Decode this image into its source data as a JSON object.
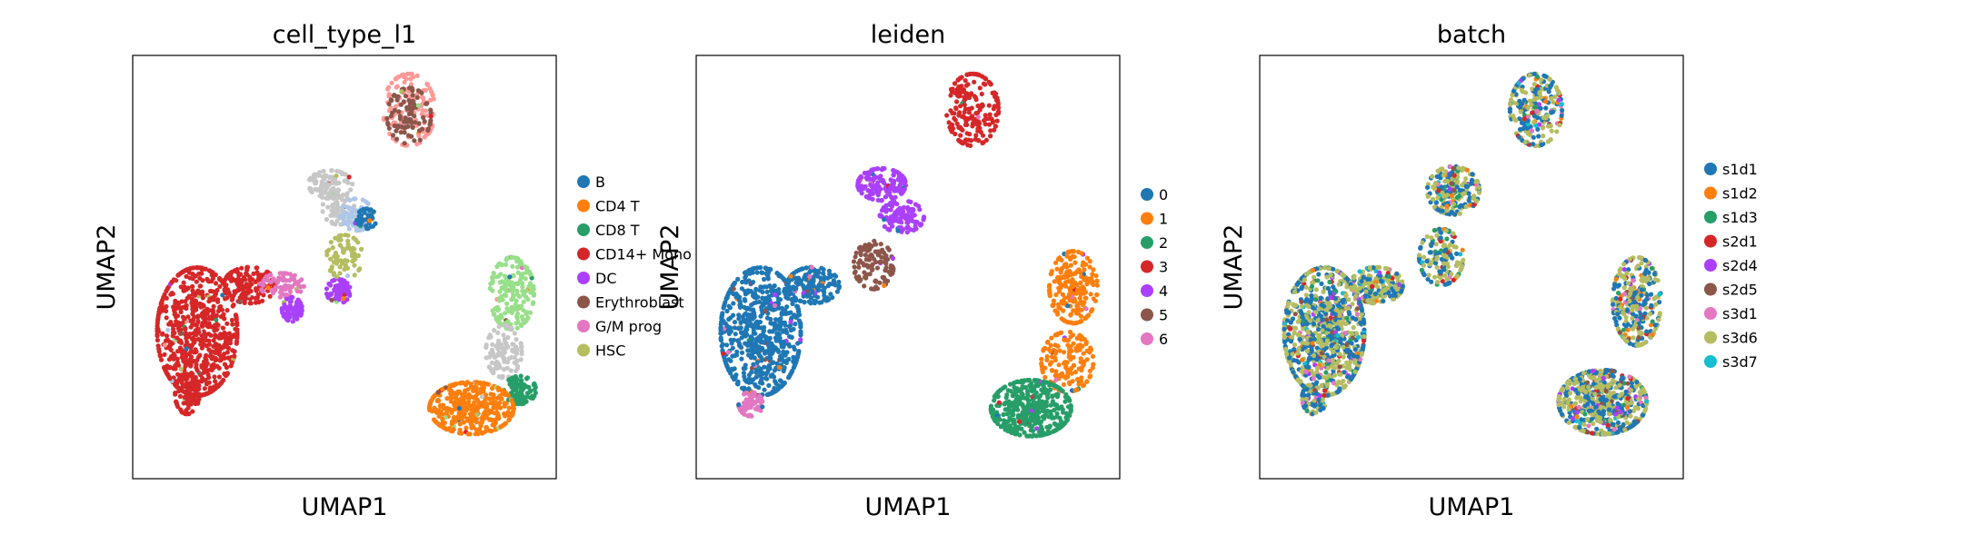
{
  "figure": {
    "background": "#ffffff"
  },
  "chart_data": [
    {
      "type": "scatter",
      "title": "cell_type_l1",
      "xlabel": "UMAP1",
      "ylabel": "UMAP2",
      "xlim": [
        -7,
        14
      ],
      "ylim": [
        -7,
        14
      ],
      "grid": false,
      "ticks": "none",
      "legend": {
        "placement": "right, outside",
        "entries": [
          {
            "name": "B",
            "color": "#1f77b4"
          },
          {
            "name": "CD4 T",
            "color": "#ff7f0e"
          },
          {
            "name": "CD8 T",
            "color": "#279e68"
          },
          {
            "name": "CD14+ Mono",
            "color": "#d62728"
          },
          {
            "name": "DC",
            "color": "#aa40fc"
          },
          {
            "name": "Erythroblast",
            "color": "#8c564b"
          },
          {
            "name": "G/M prog",
            "color": "#e377c2"
          },
          {
            "name": "HSC",
            "color": "#b5bd61"
          }
        ]
      },
      "extra_colors": [
        "#ff9896",
        "#c7c7c7",
        "#aec7e8",
        "#98df8a"
      ],
      "clusters": [
        {
          "cx": -3.8,
          "cy": 0.3,
          "rx": 2.0,
          "ry": 3.2,
          "color": "#d62728",
          "n": 700
        },
        {
          "cx": -4.3,
          "cy": -2.8,
          "rx": 0.6,
          "ry": 1.0,
          "color": "#d62728",
          "n": 90
        },
        {
          "cx": -1.2,
          "cy": 2.6,
          "rx": 1.3,
          "ry": 0.9,
          "color": "#d62728",
          "n": 160
        },
        {
          "cx": 0.4,
          "cy": 2.6,
          "rx": 1.1,
          "ry": 0.6,
          "color": "#e377c2",
          "n": 70
        },
        {
          "cx": 0.9,
          "cy": 1.4,
          "rx": 0.5,
          "ry": 0.6,
          "color": "#aa40fc",
          "n": 70
        },
        {
          "cx": 3.2,
          "cy": 2.3,
          "rx": 0.6,
          "ry": 0.6,
          "color": "#aa40fc",
          "n": 80
        },
        {
          "cx": 3.5,
          "cy": 4.0,
          "rx": 0.9,
          "ry": 1.1,
          "color": "#b5bd61",
          "n": 70
        },
        {
          "cx": 2.8,
          "cy": 7.6,
          "rx": 1.1,
          "ry": 0.7,
          "color": "#c7c7c7",
          "n": 110
        },
        {
          "cx": 3.2,
          "cy": 6.4,
          "rx": 0.8,
          "ry": 0.8,
          "color": "#c7c7c7",
          "n": 60
        },
        {
          "cx": 4.1,
          "cy": 6.1,
          "rx": 0.8,
          "ry": 0.8,
          "color": "#aec7e8",
          "n": 70
        },
        {
          "cx": 4.6,
          "cy": 5.9,
          "rx": 0.5,
          "ry": 0.5,
          "color": "#1f77b4",
          "n": 40
        },
        {
          "cx": 6.7,
          "cy": 11.3,
          "rx": 1.3,
          "ry": 1.8,
          "color": "#ff9896",
          "n": 140
        },
        {
          "cx": 6.7,
          "cy": 11.0,
          "rx": 1.1,
          "ry": 1.4,
          "color": "#8c564b",
          "n": 100
        },
        {
          "cx": 11.8,
          "cy": 2.2,
          "rx": 1.1,
          "ry": 1.8,
          "color": "#98df8a",
          "n": 180
        },
        {
          "cx": 11.4,
          "cy": -0.7,
          "rx": 0.9,
          "ry": 1.3,
          "color": "#c7c7c7",
          "n": 110
        },
        {
          "cx": 12.2,
          "cy": -2.6,
          "rx": 0.8,
          "ry": 0.7,
          "color": "#279e68",
          "n": 90
        },
        {
          "cx": 9.8,
          "cy": -3.5,
          "rx": 2.1,
          "ry": 1.3,
          "color": "#ff7f0e",
          "n": 420
        }
      ]
    },
    {
      "type": "scatter",
      "title": "leiden",
      "xlabel": "UMAP1",
      "ylabel": "UMAP2",
      "xlim": [
        -7,
        14
      ],
      "ylim": [
        -7,
        14
      ],
      "grid": false,
      "ticks": "none",
      "legend": {
        "placement": "right, outside",
        "entries": [
          {
            "name": "0",
            "color": "#1f77b4"
          },
          {
            "name": "1",
            "color": "#ff7f0e"
          },
          {
            "name": "2",
            "color": "#279e68"
          },
          {
            "name": "3",
            "color": "#d62728"
          },
          {
            "name": "4",
            "color": "#aa40fc"
          },
          {
            "name": "5",
            "color": "#8c564b"
          },
          {
            "name": "6",
            "color": "#e377c2"
          }
        ]
      },
      "clusters": [
        {
          "cx": -3.8,
          "cy": 0.3,
          "rx": 2.0,
          "ry": 3.2,
          "color": "#1f77b4",
          "n": 700
        },
        {
          "cx": -1.2,
          "cy": 2.6,
          "rx": 1.3,
          "ry": 0.9,
          "color": "#1f77b4",
          "n": 160
        },
        {
          "cx": -4.3,
          "cy": -3.3,
          "rx": 0.6,
          "ry": 0.6,
          "color": "#e377c2",
          "n": 80
        },
        {
          "cx": 1.8,
          "cy": 3.6,
          "rx": 1.0,
          "ry": 1.2,
          "color": "#8c564b",
          "n": 110
        },
        {
          "cx": 2.2,
          "cy": 7.6,
          "rx": 1.2,
          "ry": 0.8,
          "color": "#aa40fc",
          "n": 140
        },
        {
          "cx": 3.2,
          "cy": 6.0,
          "rx": 1.1,
          "ry": 0.8,
          "color": "#aa40fc",
          "n": 110
        },
        {
          "cx": 6.7,
          "cy": 11.3,
          "rx": 1.3,
          "ry": 1.8,
          "color": "#d62728",
          "n": 200
        },
        {
          "cx": 11.7,
          "cy": 2.5,
          "rx": 1.2,
          "ry": 1.8,
          "color": "#ff7f0e",
          "n": 220
        },
        {
          "cx": 11.4,
          "cy": -1.2,
          "rx": 1.3,
          "ry": 1.5,
          "color": "#ff7f0e",
          "n": 160
        },
        {
          "cx": 9.6,
          "cy": -3.5,
          "rx": 2.0,
          "ry": 1.4,
          "color": "#279e68",
          "n": 430
        }
      ]
    },
    {
      "type": "scatter",
      "title": "batch",
      "xlabel": "UMAP1",
      "ylabel": "UMAP2",
      "xlim": [
        -7,
        14
      ],
      "ylim": [
        -7,
        14
      ],
      "grid": false,
      "ticks": "none",
      "legend": {
        "placement": "right, outside",
        "entries": [
          {
            "name": "s1d1",
            "color": "#1f77b4"
          },
          {
            "name": "s1d2",
            "color": "#ff7f0e"
          },
          {
            "name": "s1d3",
            "color": "#279e68"
          },
          {
            "name": "s2d1",
            "color": "#d62728"
          },
          {
            "name": "s2d4",
            "color": "#aa40fc"
          },
          {
            "name": "s2d5",
            "color": "#8c564b"
          },
          {
            "name": "s3d1",
            "color": "#e377c2"
          },
          {
            "name": "s3d6",
            "color": "#b5bd61"
          },
          {
            "name": "s3d7",
            "color": "#17becf"
          }
        ]
      },
      "clusters": [
        {
          "cx": -3.8,
          "cy": 0.3,
          "rx": 2.0,
          "ry": 3.2,
          "color": "mix",
          "n": 900
        },
        {
          "cx": -1.2,
          "cy": 2.6,
          "rx": 1.3,
          "ry": 0.9,
          "color": "mix",
          "n": 200
        },
        {
          "cx": -4.3,
          "cy": -3.0,
          "rx": 0.6,
          "ry": 0.8,
          "color": "mix",
          "n": 80
        },
        {
          "cx": 2.0,
          "cy": 4.0,
          "rx": 1.1,
          "ry": 1.4,
          "color": "mix",
          "n": 150
        },
        {
          "cx": 2.6,
          "cy": 7.3,
          "rx": 1.3,
          "ry": 1.2,
          "color": "mix",
          "n": 220
        },
        {
          "cx": 6.7,
          "cy": 11.3,
          "rx": 1.3,
          "ry": 1.8,
          "color": "mix",
          "n": 240
        },
        {
          "cx": 11.7,
          "cy": 1.8,
          "rx": 1.2,
          "ry": 2.2,
          "color": "mix",
          "n": 300
        },
        {
          "cx": 10.0,
          "cy": -3.2,
          "rx": 2.2,
          "ry": 1.6,
          "color": "mix",
          "n": 550
        }
      ]
    }
  ]
}
